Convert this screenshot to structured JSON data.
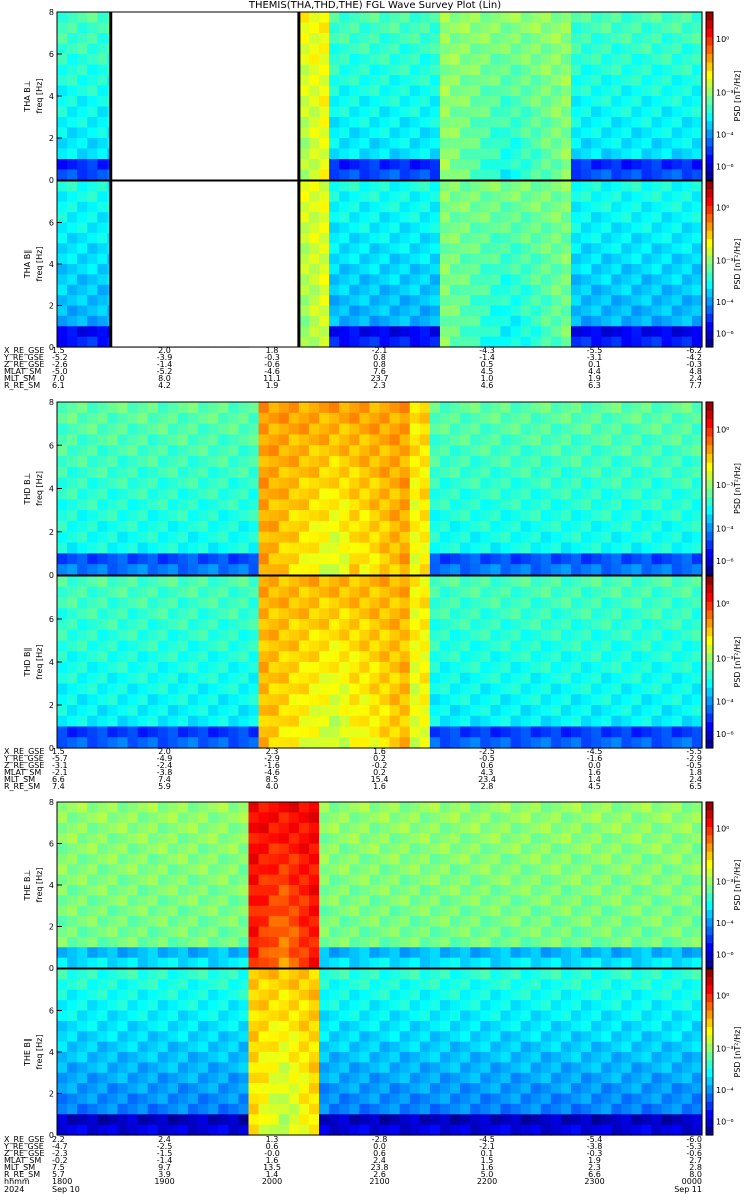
{
  "title": "THEMIS(THA,THD,THE) FGL Wave Survey Plot (Lin)",
  "colorbar": {
    "label": "PSD [nT²/Hz]",
    "ticks": [
      "10⁰",
      "10⁻³",
      "10⁻⁴",
      "10⁻⁶"
    ]
  },
  "chart_data": [
    {
      "type": "heatmap",
      "probe": "THA",
      "panel_label": "THA B⊥",
      "ylabel": "freq [Hz]",
      "yticks": [
        0,
        2,
        4,
        6,
        8
      ],
      "ylim": [
        0,
        8
      ],
      "colorbar_ticks": [
        "10⁰",
        "10⁻³",
        "10⁻⁴",
        "10⁻⁶"
      ],
      "data_gap": [
        "18:30",
        "20:15"
      ],
      "level": 0.45,
      "drop": 0.06,
      "activity": [
        {
          "x": 0.36,
          "w": 0.06,
          "v": 0.62
        },
        {
          "x": 0.7,
          "w": 0.1,
          "v": 0.52
        }
      ]
    },
    {
      "type": "heatmap",
      "probe": "THA",
      "panel_label": "THA B∥",
      "ylabel": "freq [Hz]",
      "yticks": [
        0,
        2,
        4,
        6
      ],
      "ylim": [
        0,
        8
      ],
      "colorbar_ticks": [
        "10⁰",
        "10⁻³",
        "10⁻⁴",
        "10⁻⁶"
      ],
      "data_gap": [
        "18:30",
        "20:15"
      ],
      "level": 0.4,
      "drop": 0.06,
      "activity": [
        {
          "x": 0.36,
          "w": 0.06,
          "v": 0.6
        },
        {
          "x": 0.7,
          "w": 0.1,
          "v": 0.5
        }
      ]
    },
    {
      "type": "heatmap",
      "probe": "THD",
      "panel_label": "THD B⊥",
      "ylabel": "freq [Hz]",
      "yticks": [
        0,
        2,
        4,
        6,
        8
      ],
      "ylim": [
        0,
        8
      ],
      "colorbar_ticks": [
        "10⁰",
        "10⁻³",
        "10⁻⁴",
        "10⁻⁶"
      ],
      "data_gap": null,
      "level": 0.47,
      "drop": 0.05,
      "activity": [
        {
          "x": 0.43,
          "w": 0.12,
          "v": 0.72
        },
        {
          "x": 0.52,
          "w": 0.06,
          "v": 0.66
        }
      ]
    },
    {
      "type": "heatmap",
      "probe": "THD",
      "panel_label": "THD B∥",
      "ylabel": "freq [Hz]",
      "yticks": [
        0,
        2,
        4,
        6
      ],
      "ylim": [
        0,
        8
      ],
      "colorbar_ticks": [
        "10⁰",
        "10⁻³",
        "10⁻⁴",
        "10⁻⁶"
      ],
      "data_gap": null,
      "level": 0.45,
      "drop": 0.05,
      "activity": [
        {
          "x": 0.43,
          "w": 0.12,
          "v": 0.7
        },
        {
          "x": 0.52,
          "w": 0.06,
          "v": 0.64
        }
      ]
    },
    {
      "type": "heatmap",
      "probe": "THE",
      "panel_label": "THE B⊥",
      "ylabel": "freq [Hz]",
      "yticks": [
        0,
        2,
        4,
        6,
        8
      ],
      "ylim": [
        0,
        8
      ],
      "colorbar_ticks": [
        "10⁰",
        "10⁻³",
        "10⁻⁴",
        "10⁻⁶"
      ],
      "data_gap": null,
      "level": 0.52,
      "drop": 0.02,
      "activity": [
        {
          "x": 0.35,
          "w": 0.06,
          "v": 0.88
        }
      ]
    },
    {
      "type": "heatmap",
      "probe": "THE",
      "panel_label": "THE B∥",
      "ylabel": "freq [Hz]",
      "yticks": [
        0,
        2,
        4,
        6
      ],
      "ylim": [
        0,
        8
      ],
      "colorbar_ticks": [
        "10⁰",
        "10⁻³",
        "10⁻⁴",
        "10⁻⁶"
      ],
      "data_gap": null,
      "level": 0.42,
      "drop": 0.1,
      "activity": [
        {
          "x": 0.35,
          "w": 0.06,
          "v": 0.68
        }
      ]
    }
  ],
  "ephemeris": [
    {
      "rows": [
        {
          "name": "X_RE_GSE",
          "values": [
            "1.5",
            "2.0",
            "1.8",
            "-2.1",
            "-4.3",
            "-5.5",
            "-6.2"
          ]
        },
        {
          "name": "Y_RE_GSE",
          "values": [
            "-5.2",
            "-3.9",
            "-0.3",
            "0.8",
            "-1.4",
            "-3.1",
            "-4.2"
          ]
        },
        {
          "name": "Z_RE_GSE",
          "values": [
            "-2.6",
            "-1.4",
            "-0.6",
            "0.8",
            "0.5",
            "0.1",
            "-0.3"
          ]
        },
        {
          "name": "MLAT_SM",
          "values": [
            "-5.0",
            "-5.2",
            "-4.6",
            "7.6",
            "4.5",
            "4.4",
            "4.8"
          ]
        },
        {
          "name": "MLT_SM",
          "values": [
            "7.0",
            "8.0",
            "11.1",
            "23.7",
            "1.0",
            "1.9",
            "2.4"
          ]
        },
        {
          "name": "R_RE_SM",
          "values": [
            "6.1",
            "4.2",
            "1.9",
            "2.3",
            "4.6",
            "6.3",
            "7.7"
          ]
        }
      ]
    },
    {
      "rows": [
        {
          "name": "X_RE_GSE",
          "values": [
            "1.5",
            "2.0",
            "2.3",
            "1.6",
            "-2.5",
            "-4.5",
            "-5.5"
          ]
        },
        {
          "name": "Y_RE_GSE",
          "values": [
            "-5.7",
            "-4.9",
            "-2.9",
            "0.2",
            "-0.5",
            "-1.6",
            "-2.9"
          ]
        },
        {
          "name": "Z_RE_GSE",
          "values": [
            "-3.1",
            "-2.4",
            "-1.6",
            "-0.2",
            "0.6",
            "0.0",
            "-0.5"
          ]
        },
        {
          "name": "MLAT_SM",
          "values": [
            "-2.1",
            "-3.8",
            "-4.6",
            "0.2",
            "4.3",
            "1.6",
            "1.8"
          ]
        },
        {
          "name": "MLT_SM",
          "values": [
            "6.6",
            "7.4",
            "8.5",
            "15.4",
            "23.4",
            "1.4",
            "2.4"
          ]
        },
        {
          "name": "R_RE_SM",
          "values": [
            "7.4",
            "5.9",
            "4.0",
            "1.6",
            "2.8",
            "4.5",
            "6.5"
          ]
        }
      ]
    },
    {
      "rows": [
        {
          "name": "X_RE_GSE",
          "values": [
            "2.2",
            "2.4",
            "1.3",
            "-2.8",
            "-4.5",
            "-5.4",
            "-6.0"
          ]
        },
        {
          "name": "Y_RE_GSE",
          "values": [
            "-4.7",
            "-2.5",
            "0.6",
            "0.0",
            "-2.1",
            "-3.8",
            "-5.3"
          ]
        },
        {
          "name": "Z_RE_GSE",
          "values": [
            "-2.3",
            "-1.5",
            "-0.0",
            "0.6",
            "0.1",
            "-0.3",
            "-0.6"
          ]
        },
        {
          "name": "MLAT_SM",
          "values": [
            "-0.2",
            "-1.4",
            "1.6",
            "2.4",
            "1.5",
            "1.9",
            "2.7"
          ]
        },
        {
          "name": "MLT_SM",
          "values": [
            "7.5",
            "9.7",
            "13.5",
            "23.8",
            "1.6",
            "2.3",
            "2.8"
          ]
        },
        {
          "name": "R_RE_SM",
          "values": [
            "5.7",
            "3.9",
            "1.4",
            "2.6",
            "5.0",
            "6.6",
            "8.0"
          ]
        }
      ]
    }
  ],
  "time_axis": {
    "hhmm_label": "hhmm",
    "year": "2024",
    "ticks": [
      "1800",
      "1900",
      "2000",
      "2100",
      "2200",
      "2300",
      "0000"
    ],
    "dates": {
      "start": "Sep 10",
      "end": "Sep 11"
    }
  }
}
